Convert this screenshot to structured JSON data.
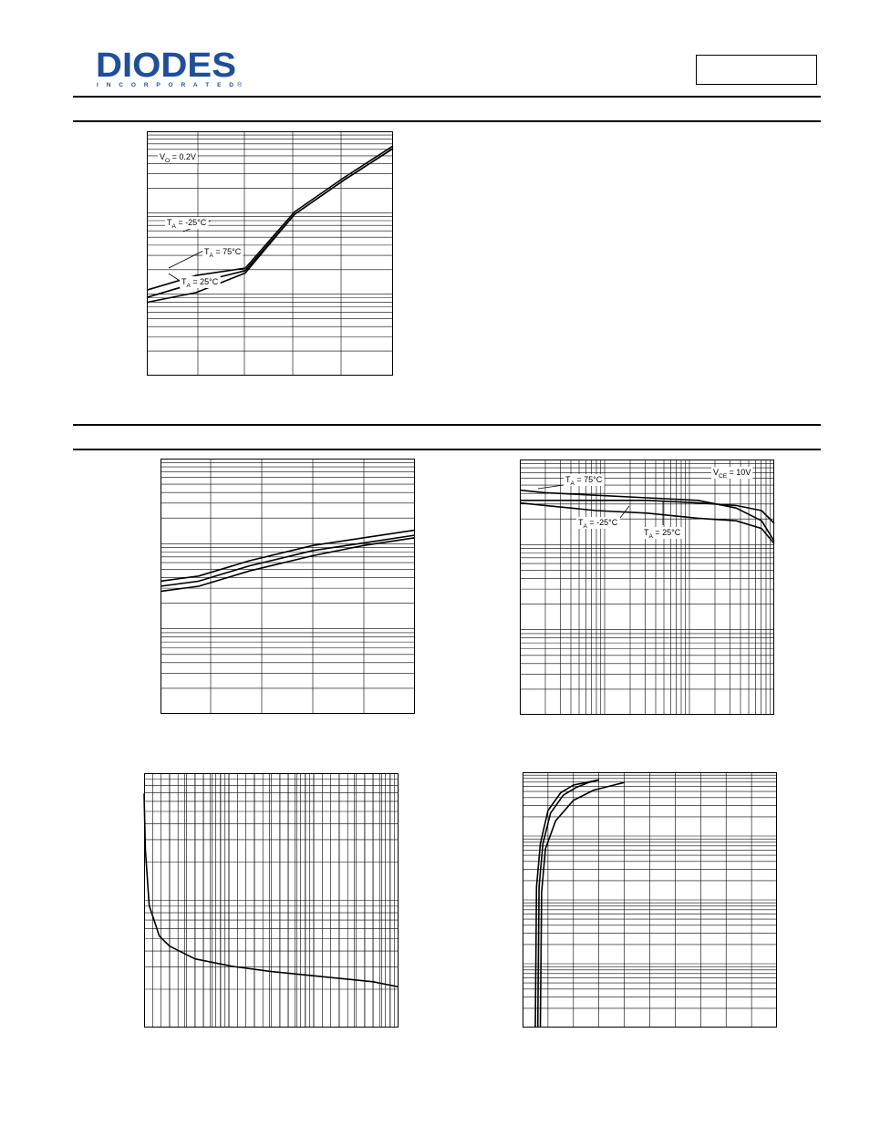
{
  "header": {
    "logo_text": "DIODES",
    "logo_subtext": "I N C O R P O R A T E D",
    "registered_mark": "®"
  },
  "colors": {
    "ink": "#000000",
    "paper": "#ffffff"
  },
  "chart_data": [
    {
      "id": "fig1",
      "type": "line",
      "series": [
        {
          "x": [
            0.0,
            0.2,
            0.4,
            0.6,
            0.8,
            1.0
          ],
          "y": [
            0.3,
            0.34,
            0.42,
            0.66,
            0.8,
            0.93
          ]
        },
        {
          "x": [
            0.0,
            0.2,
            0.4,
            0.6,
            0.8,
            1.0
          ],
          "y": [
            0.32,
            0.38,
            0.43,
            0.66,
            0.8,
            0.93
          ]
        },
        {
          "x": [
            0.0,
            0.2,
            0.4,
            0.6,
            0.8,
            1.0
          ],
          "y": [
            0.35,
            0.41,
            0.44,
            0.67,
            0.81,
            0.94
          ]
        }
      ],
      "annotations": [
        {
          "text": "VO = 0.2V",
          "base": "V",
          "sub": "O",
          "rest": " = 0.2V"
        },
        {
          "text": "TA = -25°C",
          "base": "T",
          "sub": "A",
          "rest": " = -25°C"
        },
        {
          "text": "TA = 75°C",
          "base": "T",
          "sub": "A",
          "rest": " = 75°C"
        },
        {
          "text": "TA = 25°C",
          "base": "T",
          "sub": "A",
          "rest": " = 25°C"
        }
      ]
    },
    {
      "id": "fig2",
      "type": "line",
      "series": [
        {
          "x": [
            0.0,
            0.15,
            0.35,
            0.6,
            0.8,
            1.0
          ],
          "y": [
            0.48,
            0.5,
            0.56,
            0.62,
            0.66,
            0.69
          ]
        },
        {
          "x": [
            0.0,
            0.15,
            0.35,
            0.6,
            0.8,
            1.0
          ],
          "y": [
            0.5,
            0.52,
            0.58,
            0.64,
            0.67,
            0.7
          ]
        },
        {
          "x": [
            0.0,
            0.15,
            0.35,
            0.6,
            0.8,
            1.0
          ],
          "y": [
            0.52,
            0.54,
            0.6,
            0.66,
            0.69,
            0.72
          ]
        }
      ],
      "annotations": []
    },
    {
      "id": "fig3",
      "type": "line",
      "series": [
        {
          "x": [
            0.0,
            0.1,
            0.3,
            0.5,
            0.7,
            0.85,
            0.95,
            1.0
          ],
          "y": [
            0.88,
            0.87,
            0.86,
            0.85,
            0.84,
            0.81,
            0.76,
            0.68
          ]
        },
        {
          "x": [
            0.0,
            0.1,
            0.3,
            0.5,
            0.7,
            0.85,
            0.95,
            1.0
          ],
          "y": [
            0.84,
            0.84,
            0.84,
            0.84,
            0.83,
            0.82,
            0.8,
            0.75
          ]
        },
        {
          "x": [
            0.0,
            0.1,
            0.3,
            0.5,
            0.7,
            0.85,
            0.95,
            1.0
          ],
          "y": [
            0.83,
            0.82,
            0.8,
            0.79,
            0.77,
            0.76,
            0.73,
            0.67
          ]
        }
      ],
      "annotations": [
        {
          "text": "VCE = 10V",
          "base": "V",
          "sub": "CE",
          "rest": " = 10V"
        },
        {
          "text": "TA = 75°C",
          "base": "T",
          "sub": "A",
          "rest": " = 75°C"
        },
        {
          "text": "TA = -25°C",
          "base": "T",
          "sub": "A",
          "rest": " = -25°C"
        },
        {
          "text": "TA = 25°C",
          "base": "T",
          "sub": "A",
          "rest": " = 25°C"
        }
      ]
    },
    {
      "id": "fig4",
      "type": "line",
      "series": [
        {
          "x": [
            0.0,
            0.005,
            0.02,
            0.06,
            0.1,
            0.2,
            0.35,
            0.5,
            0.7,
            0.9,
            1.0
          ],
          "y": [
            0.92,
            0.7,
            0.48,
            0.36,
            0.32,
            0.27,
            0.24,
            0.22,
            0.2,
            0.18,
            0.16
          ]
        }
      ],
      "annotations": []
    },
    {
      "id": "fig5",
      "type": "line",
      "series": [
        {
          "x": [
            0.05,
            0.055,
            0.07,
            0.1,
            0.15,
            0.2,
            0.25,
            0.3
          ],
          "y": [
            0.0,
            0.55,
            0.72,
            0.85,
            0.92,
            0.95,
            0.96,
            0.97
          ]
        },
        {
          "x": [
            0.06,
            0.065,
            0.08,
            0.11,
            0.16,
            0.21,
            0.26,
            0.3
          ],
          "y": [
            0.0,
            0.55,
            0.72,
            0.84,
            0.91,
            0.94,
            0.96,
            0.97
          ]
        },
        {
          "x": [
            0.07,
            0.075,
            0.09,
            0.13,
            0.2,
            0.28,
            0.36,
            0.4
          ],
          "y": [
            0.0,
            0.53,
            0.7,
            0.81,
            0.89,
            0.93,
            0.95,
            0.96
          ]
        }
      ],
      "annotations": []
    }
  ]
}
